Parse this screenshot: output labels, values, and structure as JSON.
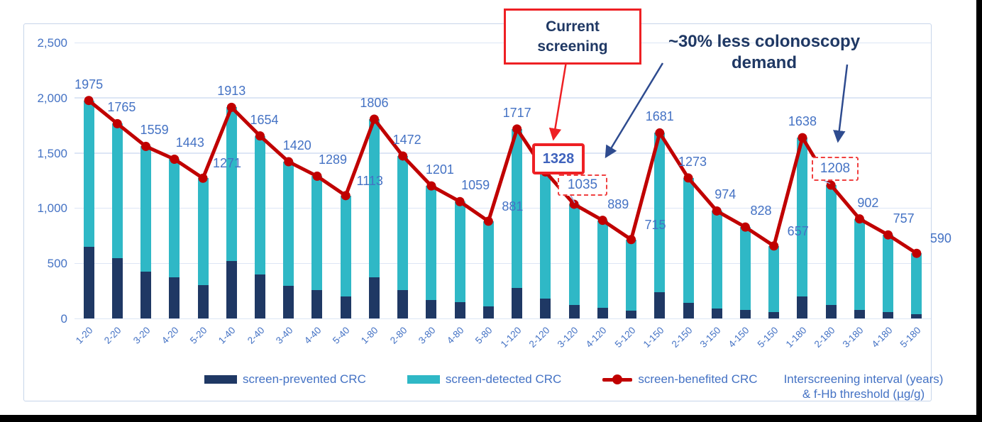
{
  "annotations": {
    "current_screening": {
      "text": "Current screening"
    },
    "less_demand": {
      "text": "~30% less colonoscopy demand"
    }
  },
  "axis_title": {
    "line1": "Interscreening interval (years)",
    "line2": "& f-Hb threshold (µg/g)"
  },
  "colors": {
    "prevented_bar": "#1f3864",
    "detected_bar": "#2fb8c6",
    "benefited_line": "#c00000",
    "label_blue": "#4472c4",
    "annotation_navy": "#1f3864",
    "annotation_red": "#ee2024",
    "dashed_red": "#f04040",
    "leader_blue": "#8ea9db"
  },
  "chart_data": {
    "type": "bar",
    "subtype": "stacked-bars-with-line",
    "categories": [
      "1-20",
      "2-20",
      "3-20",
      "4-20",
      "5-20",
      "1-40",
      "2-40",
      "3-40",
      "4-40",
      "5-40",
      "1-80",
      "2-80",
      "3-80",
      "4-80",
      "5-80",
      "1-120",
      "2-120",
      "3-120",
      "4-120",
      "5-120",
      "1-150",
      "2-150",
      "3-150",
      "4-150",
      "5-150",
      "1-180",
      "2-180",
      "3-180",
      "4-180",
      "5-180"
    ],
    "series": [
      {
        "name": "screen-prevented CRC",
        "type": "bar-stacked",
        "color": "#1f3864",
        "values": [
          650,
          545,
          425,
          375,
          300,
          520,
          400,
          295,
          255,
          200,
          370,
          255,
          165,
          145,
          110,
          275,
          180,
          120,
          95,
          70,
          235,
          140,
          90,
          78,
          58,
          200,
          120,
          77,
          55,
          40
        ]
      },
      {
        "name": "screen-detected CRC",
        "type": "bar-stacked",
        "color": "#2fb8c6",
        "values": [
          1325,
          1220,
          1134,
          1068,
          971,
          1393,
          1254,
          1125,
          1034,
          913,
          1436,
          1217,
          1036,
          914,
          771,
          1442,
          1148,
          915,
          794,
          645,
          1446,
          1133,
          884,
          750,
          599,
          1438,
          1088,
          825,
          702,
          550
        ]
      },
      {
        "name": "screen-benefited CRC",
        "type": "line",
        "color": "#c00000",
        "values": [
          1975,
          1765,
          1559,
          1443,
          1271,
          1913,
          1654,
          1420,
          1289,
          1113,
          1806,
          1472,
          1201,
          1059,
          881,
          1717,
          1328,
          1035,
          889,
          715,
          1681,
          1273,
          974,
          828,
          657,
          1638,
          1208,
          902,
          757,
          590
        ]
      }
    ],
    "data_labels_series": "screen-benefited CRC",
    "highlights": {
      "solid_box_index": 16,
      "dashed_box_indices": [
        17,
        26
      ]
    },
    "ylim": [
      0,
      2500
    ],
    "yticks": [
      "0",
      "500",
      "1,000",
      "1,500",
      "2,000",
      "2,500"
    ],
    "grid": true,
    "legend_position": "bottom",
    "xlabel": "Interscreening interval (years) & f-Hb threshold (µg/g)",
    "ylabel": ""
  }
}
